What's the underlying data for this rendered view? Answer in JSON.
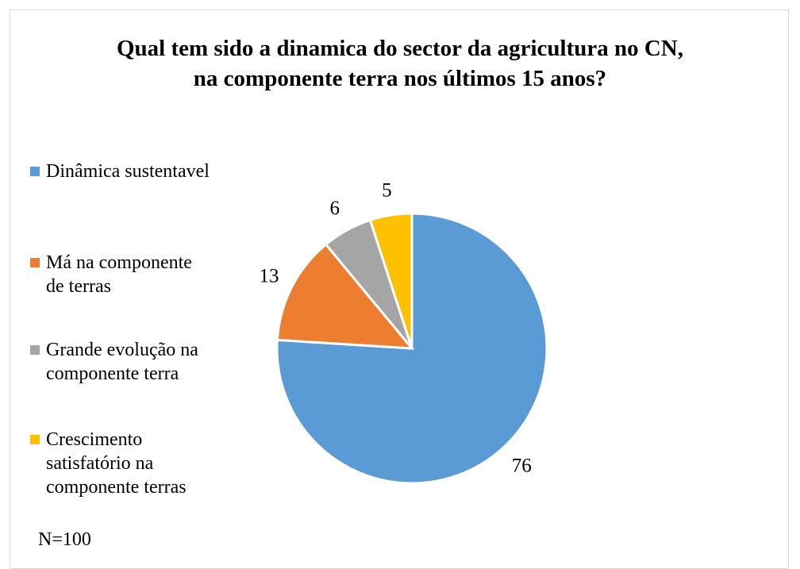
{
  "chart_data": {
    "type": "pie",
    "title": "Qual tem sido a dinamica do sector da agricultura no CN, na componente terra nos últimos 15 anos?",
    "title_lines": [
      "Qual tem sido a dinamica do sector da agricultura no CN,",
      "na componente terra nos últimos 15 anos?"
    ],
    "legend_position": "left",
    "slices": [
      {
        "label_lines": [
          "Dinâmica sustentavel"
        ],
        "value": 76,
        "color": "#5b9bd5"
      },
      {
        "label_lines": [
          "Má na componente",
          "de terras"
        ],
        "value": 13,
        "color": "#ed7d31"
      },
      {
        "label_lines": [
          "Grande evolução na",
          "componente terra"
        ],
        "value": 6,
        "color": "#a5a5a5"
      },
      {
        "label_lines": [
          "Crescimento",
          "satisfatório na",
          "componente terras"
        ],
        "value": 5,
        "color": "#ffc000"
      }
    ]
  },
  "footnote": "N=100"
}
